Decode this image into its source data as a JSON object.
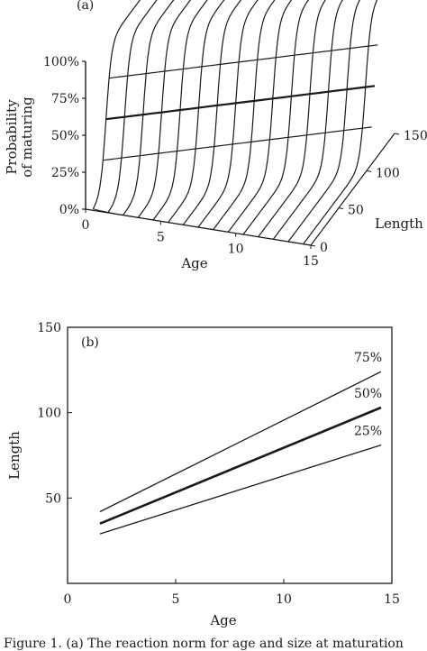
{
  "chart_data": [
    {
      "type": "surface",
      "panel_label": "(a)",
      "z_axis": {
        "label": "Probability of maturing",
        "label_lines": [
          "Probability",
          "of maturing"
        ],
        "ticks": [
          "0%",
          "25%",
          "50%",
          "75%",
          "100%"
        ],
        "range": [
          0,
          1
        ]
      },
      "x_axis": {
        "label": "Age",
        "ticks": [
          "0",
          "5",
          "10",
          "15"
        ],
        "range": [
          0,
          15
        ]
      },
      "y_axis": {
        "label": "Length",
        "ticks": [
          "0",
          "50",
          "100",
          "150"
        ],
        "range": [
          0,
          150
        ]
      },
      "contours": [
        "25%",
        "50%",
        "75%"
      ],
      "grid": true
    },
    {
      "type": "line",
      "panel_label": "(b)",
      "xlabel": "Age",
      "ylabel": "Length",
      "xlim": [
        0,
        15
      ],
      "ylim": [
        0,
        150
      ],
      "xticks": [
        "0",
        "5",
        "10",
        "15"
      ],
      "yticks": [
        "50",
        "100",
        "150"
      ],
      "series": [
        {
          "name": "75%",
          "x": [
            1.5,
            14.5
          ],
          "y": [
            42,
            124
          ],
          "weight": "normal"
        },
        {
          "name": "50%",
          "x": [
            1.5,
            14.5
          ],
          "y": [
            35,
            103
          ],
          "weight": "bold"
        },
        {
          "name": "25%",
          "x": [
            1.5,
            14.5
          ],
          "y": [
            29,
            81
          ],
          "weight": "normal"
        }
      ]
    }
  ],
  "caption": "Figure 1. (a) The reaction norm for age and size at maturation"
}
